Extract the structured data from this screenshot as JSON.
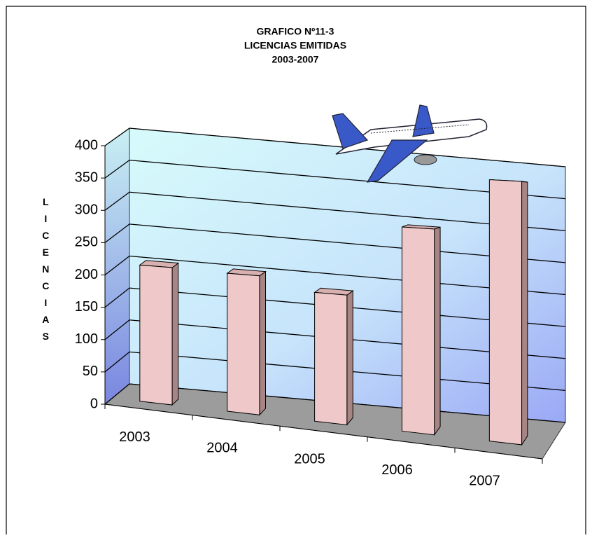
{
  "chart_data": {
    "type": "bar3d",
    "title": [
      "GRAFICO Nº11-3",
      "LICENCIAS EMITIDAS",
      "2003-2007"
    ],
    "y_label": "LICENCIAS",
    "categories": [
      "2003",
      "2004",
      "2005",
      "2006",
      "2007"
    ],
    "values": [
      210,
      208,
      190,
      295,
      370
    ],
    "color": "#efc9c9",
    "ylim": [
      0,
      400
    ],
    "yticks": [
      0,
      50,
      100,
      150,
      200,
      250,
      300,
      350,
      400
    ],
    "grid": true
  }
}
